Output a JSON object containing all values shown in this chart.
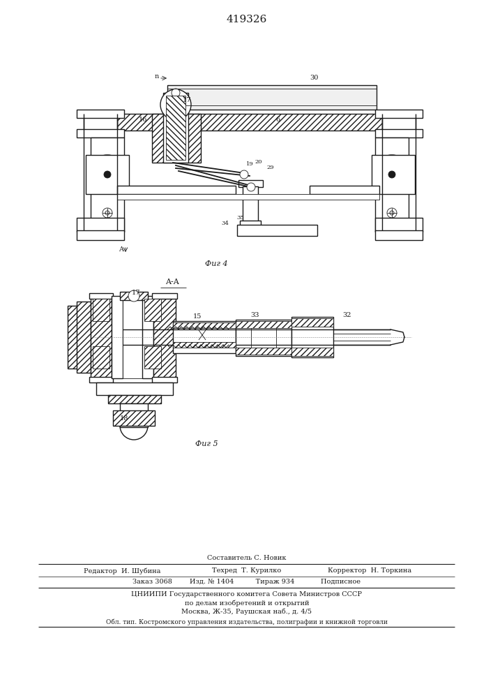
{
  "bg_color": "#ffffff",
  "line_color": "#1a1a1a",
  "patent_number": "419326",
  "fig4_caption": "Фиг 4",
  "fig5_caption": "Фиг 5",
  "editor_line": "Редактор  И. Шубина",
  "composer_line": "Составитель С. Новик",
  "tech_line": "Техред  Т. Курилко",
  "corrector_line": "Корректор  Н. Торкина",
  "order_line": "Заказ 3068        Изд. № 1404          Тираж 934            Подписное",
  "cniip_line1": "ЦНИИПИ Государственного комитега Совета Министров СССР",
  "cniip_line2": "по делам изобретений и открытий",
  "cniip_line3": "Москва, Ж-35, Раушская наб., д. 4/5",
  "obl_line": "Обл. тип. Костромского управления издательства, полиграфии и книжной торговли"
}
